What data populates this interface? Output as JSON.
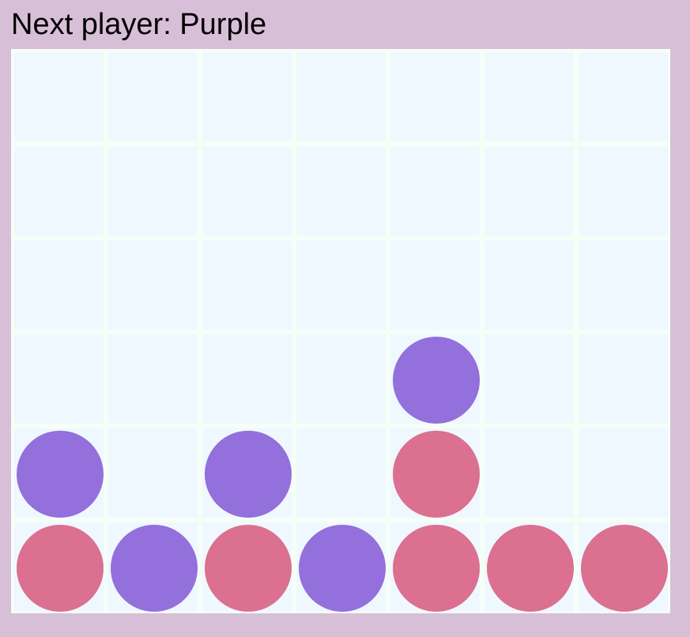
{
  "status": {
    "text": "Next player: Purple"
  },
  "colors": {
    "page_background": "#d8bfd8",
    "board_grid": "#f5fff8",
    "empty_cell": "#f0f8ff",
    "pink_disc": "#db7090",
    "purple_disc": "#9370db"
  },
  "board": {
    "rows": 6,
    "columns": 7,
    "cells": [
      [
        "",
        "",
        "",
        "",
        "",
        "",
        ""
      ],
      [
        "",
        "",
        "",
        "",
        "",
        "",
        ""
      ],
      [
        "",
        "",
        "",
        "",
        "",
        "",
        ""
      ],
      [
        "",
        "",
        "",
        "",
        "purple",
        "",
        ""
      ],
      [
        "purple",
        "",
        "purple",
        "",
        "pink",
        "",
        ""
      ],
      [
        "pink",
        "purple",
        "pink",
        "purple",
        "pink",
        "pink",
        "pink"
      ]
    ]
  }
}
